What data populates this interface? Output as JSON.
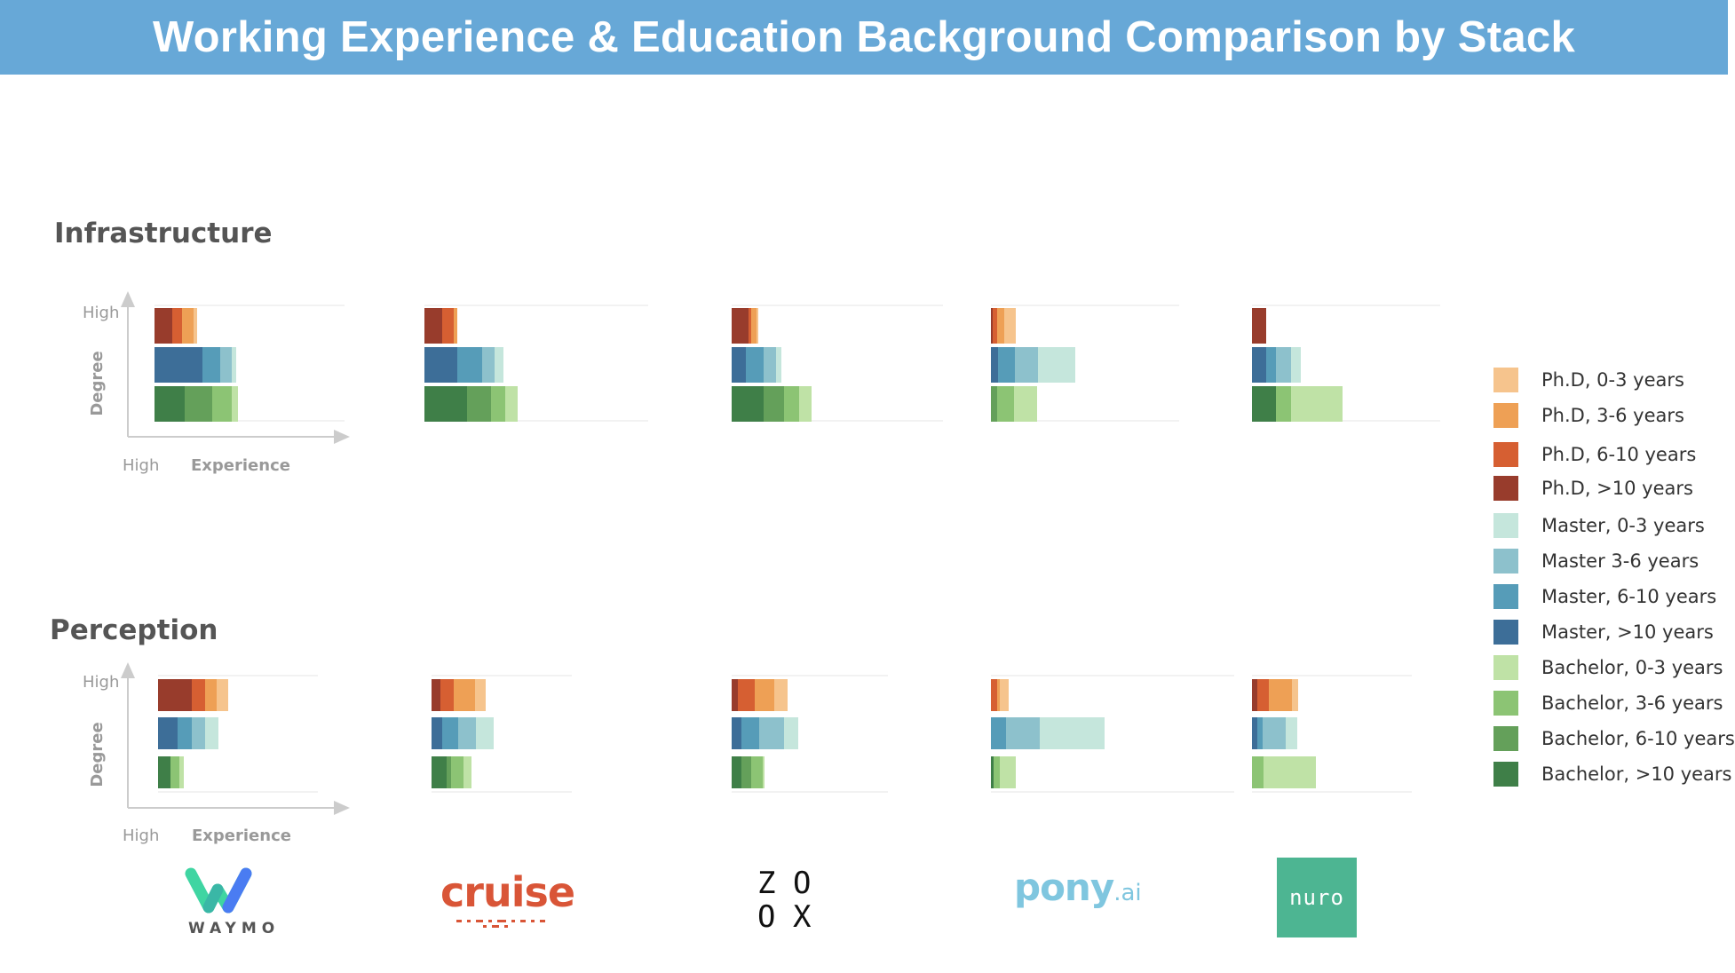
{
  "title": "Working Experience & Education Background Comparison by Stack",
  "colors": {
    "phd_0_3": "#f6c48d",
    "phd_3_6": "#eea055",
    "phd_6_10": "#d65f32",
    "phd_gt10": "#983c2c",
    "master_0_3": "#c5e6dc",
    "master_3_6": "#8dc1cc",
    "master_6_10": "#569cb8",
    "master_gt10": "#3d6e98",
    "bachelor_0_3": "#bfe2a6",
    "bachelor_3_6": "#8cc474",
    "bachelor_6_10": "#64a05a",
    "bachelor_gt10": "#3f7f48"
  },
  "legend": [
    {
      "label": "Ph.D, 0-3 years",
      "color": "#f6c48d"
    },
    {
      "label": "Ph.D, 3-6 years",
      "color": "#eea055"
    },
    {
      "label": "Ph.D, 6-10 years",
      "color": "#d65f32"
    },
    {
      "label": "Ph.D, >10 years",
      "color": "#983c2c"
    },
    {
      "label": "Master, 0-3 years",
      "color": "#c5e6dc"
    },
    {
      "label": "Master 3-6 years",
      "color": "#8dc1cc"
    },
    {
      "label": "Master, 6-10 years",
      "color": "#569cb8"
    },
    {
      "label": "Master, >10 years",
      "color": "#3d6e98"
    },
    {
      "label": "Bachelor, 0-3 years",
      "color": "#bfe2a6"
    },
    {
      "label": "Bachelor, 3-6 years",
      "color": "#8cc474"
    },
    {
      "label": "Bachelor, 6-10 years",
      "color": "#64a05a"
    },
    {
      "label": "Bachelor, >10 years",
      "color": "#3f7f48"
    }
  ],
  "axis_labels": {
    "y_high": "High",
    "y_title": "Degree",
    "x_high": "High",
    "x_title": "Experience"
  },
  "companies": [
    "Waymo",
    "Cruise",
    "Zoox",
    "Pony.ai",
    "Nuro"
  ],
  "logos": {
    "waymo": "WAYMO",
    "cruise": "cruise",
    "zoox": [
      "Z",
      "O",
      "O",
      "X"
    ],
    "pony_main": "pony",
    "pony_suffix": ".ai",
    "nuro": "nuro"
  },
  "chart_data": [
    {
      "type": "bar",
      "orientation": "horizontal-stacked",
      "section": "Infrastructure",
      "segment_order": [
        ">10 years",
        "6-10 years",
        "3-6 years",
        "0-3 years"
      ],
      "rows": [
        "Ph.D",
        "Master",
        "Bachelor"
      ],
      "companies": [
        {
          "name": "Waymo",
          "phd": [
            20,
            11,
            13,
            4
          ],
          "master": [
            54,
            20,
            13,
            5
          ],
          "bachelor": [
            34,
            31,
            22,
            7
          ]
        },
        {
          "name": "Cruise",
          "phd": [
            20,
            13,
            4,
            0
          ],
          "master": [
            37,
            28,
            14,
            10
          ],
          "bachelor": [
            48,
            27,
            16,
            14
          ]
        },
        {
          "name": "Zoox",
          "phd": [
            19,
            3,
            6,
            2
          ],
          "master": [
            16,
            20,
            14,
            6
          ],
          "bachelor": [
            36,
            23,
            17,
            14
          ]
        },
        {
          "name": "Pony.ai",
          "phd": [
            2,
            5,
            8,
            13
          ],
          "master": [
            8,
            19,
            26,
            42
          ],
          "bachelor": [
            0,
            7,
            19,
            26
          ]
        },
        {
          "name": "Nuro",
          "phd": [
            16,
            0,
            0,
            0
          ],
          "master": [
            16,
            11,
            17,
            11
          ],
          "bachelor": [
            27,
            0,
            17,
            58
          ]
        }
      ]
    },
    {
      "type": "bar",
      "orientation": "horizontal-stacked",
      "section": "Perception",
      "segment_order": [
        ">10 years",
        "6-10 years",
        "3-6 years",
        "0-3 years"
      ],
      "rows": [
        "Ph.D",
        "Master",
        "Bachelor"
      ],
      "companies": [
        {
          "name": "Waymo",
          "phd": [
            38,
            15,
            13,
            13
          ],
          "master": [
            22,
            16,
            15,
            15
          ],
          "bachelor": [
            14,
            0,
            10,
            5
          ]
        },
        {
          "name": "Cruise",
          "phd": [
            10,
            15,
            24,
            12
          ],
          "master": [
            12,
            18,
            20,
            20
          ],
          "bachelor": [
            17,
            5,
            14,
            9
          ]
        },
        {
          "name": "Zoox",
          "phd": [
            7,
            19,
            22,
            15
          ],
          "master": [
            11,
            20,
            28,
            16
          ],
          "bachelor": [
            11,
            11,
            13,
            2
          ]
        },
        {
          "name": "Pony.ai",
          "phd": [
            0,
            7,
            3,
            10
          ],
          "master": [
            0,
            17,
            38,
            73
          ],
          "bachelor": [
            3,
            0,
            7,
            18
          ]
        },
        {
          "name": "Nuro",
          "phd": [
            6,
            13,
            26,
            7
          ],
          "master": [
            6,
            6,
            26,
            13
          ],
          "bachelor": [
            0,
            0,
            13,
            59
          ]
        }
      ]
    }
  ]
}
